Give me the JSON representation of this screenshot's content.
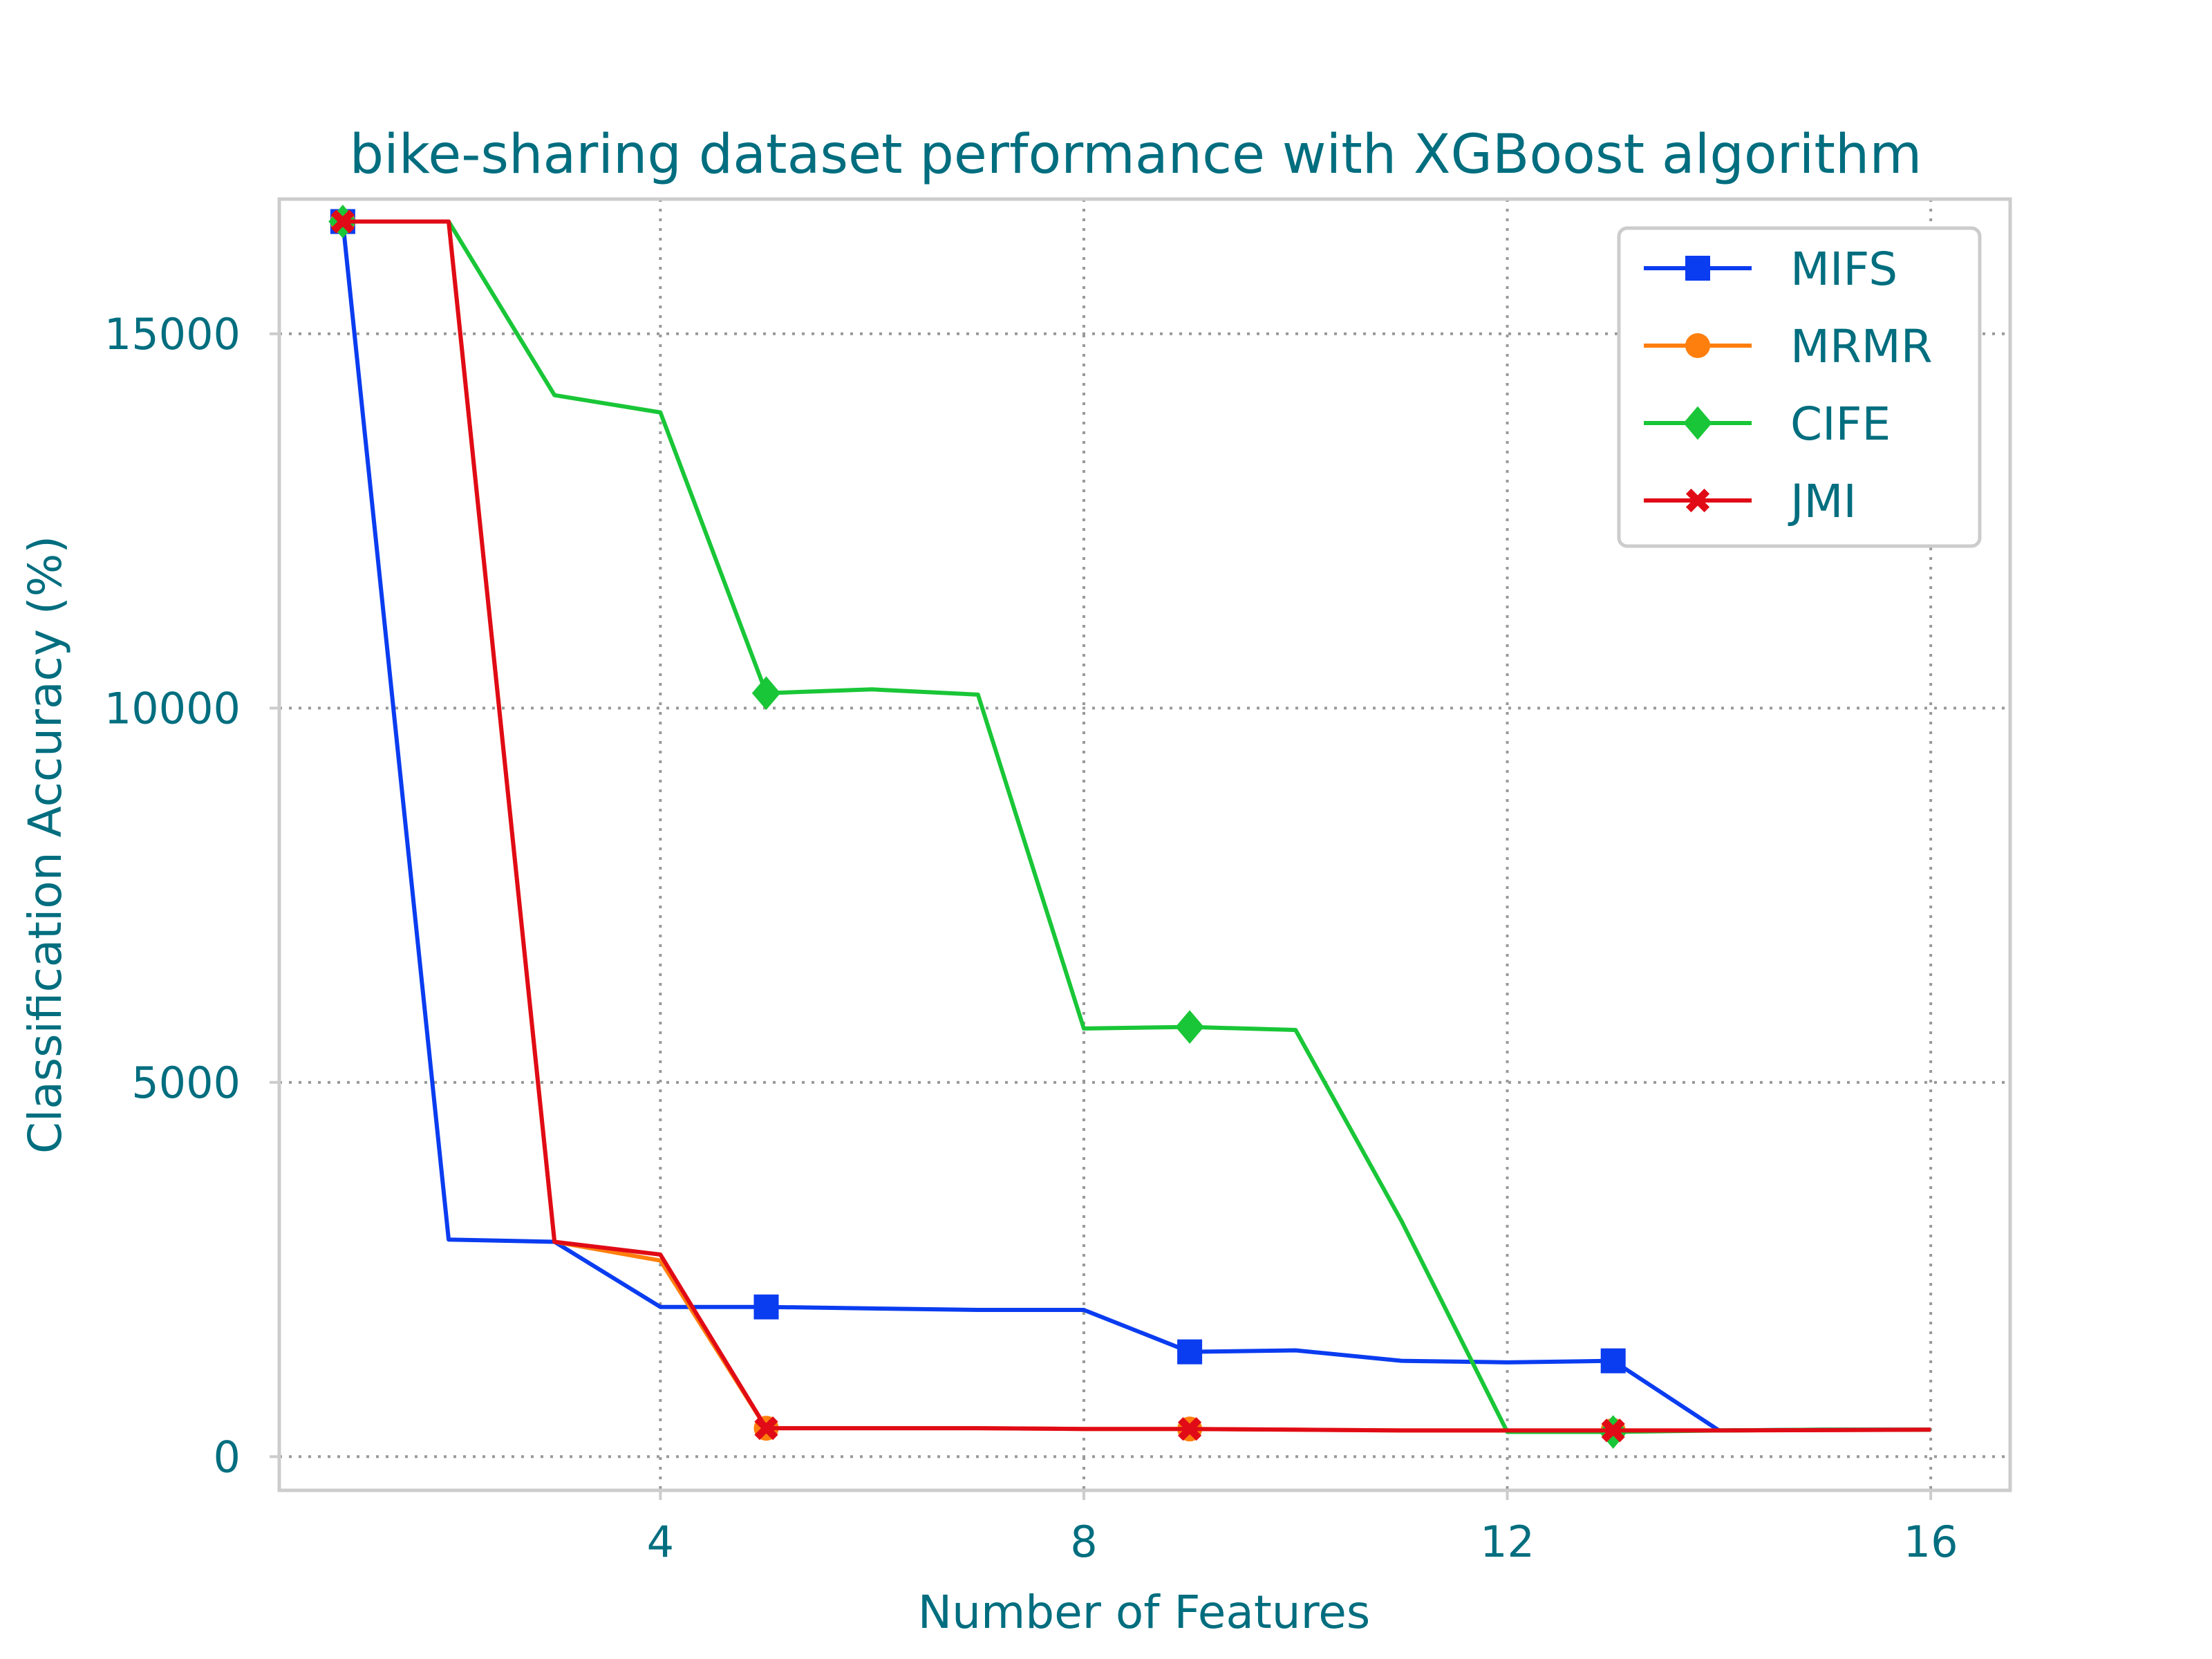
{
  "chart_data": {
    "type": "line",
    "title": "bike-sharing dataset performance with XGBoost algorithm",
    "xlabel": "Number of Features",
    "ylabel": "Classification Accuracy (%)",
    "xlim": [
      0.4,
      16.75
    ],
    "ylim": [
      -450,
      16800
    ],
    "xticks": [
      4,
      8,
      12,
      16
    ],
    "yticks": [
      0,
      5000,
      10000,
      15000
    ],
    "grid": true,
    "legend_position": "top-right",
    "x": [
      1,
      2,
      3,
      4,
      5,
      6,
      7,
      8,
      9,
      10,
      11,
      12,
      13,
      14,
      15,
      16
    ],
    "series": [
      {
        "name": "MIFS",
        "color": "#0a3cf0",
        "marker": "square",
        "values": [
          16500,
          2900,
          2870,
          2000,
          2000,
          1980,
          1960,
          1960,
          1400,
          1420,
          1280,
          1260,
          1280,
          350,
          360,
          360
        ]
      },
      {
        "name": "MRMR",
        "color": "#ff7f0e",
        "marker": "circle",
        "values": [
          16500,
          16500,
          2870,
          2620,
          380,
          380,
          380,
          370,
          370,
          360,
          350,
          350,
          350,
          350,
          355,
          360
        ]
      },
      {
        "name": "CIFE",
        "color": "#19c637",
        "marker": "diamond",
        "values": [
          16500,
          16500,
          14180,
          13950,
          10200,
          10250,
          10180,
          5720,
          5740,
          5700,
          3150,
          330,
          330,
          350,
          360,
          360
        ]
      },
      {
        "name": "JMI",
        "color": "#e00b16",
        "marker": "x",
        "values": [
          16500,
          16500,
          2870,
          2700,
          380,
          380,
          380,
          370,
          370,
          360,
          350,
          350,
          350,
          350,
          355,
          360
        ]
      }
    ],
    "marker_every": [
      1,
      5,
      9,
      13
    ]
  }
}
